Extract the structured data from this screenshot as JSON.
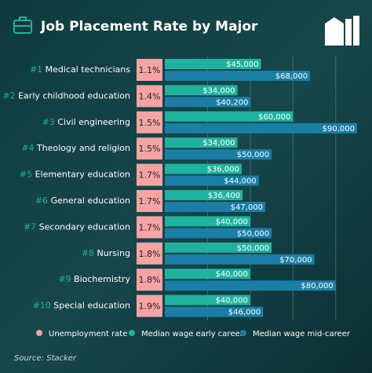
{
  "chart_data": {
    "type": "bar",
    "title": "Job Placement Rate by Major",
    "ranks": [
      "#1",
      "#2",
      "#3",
      "#4",
      "#5",
      "#6",
      "#7",
      "#8",
      "#9",
      "#10"
    ],
    "categories": [
      "Medical technicians",
      "Early childhood education",
      "Civil engineering",
      "Theology and religion",
      "Elementary education",
      "General education",
      "Secondary education",
      "Nursing",
      "Biochemistry",
      "Special education"
    ],
    "series": [
      {
        "name": "Unemployment rate",
        "color": "#f5a3a3",
        "values": [
          1.1,
          1.4,
          1.5,
          1.5,
          1.7,
          1.7,
          1.7,
          1.8,
          1.8,
          1.9
        ],
        "value_labels": [
          "1.1%",
          "1.4%",
          "1.5%",
          "1.5%",
          "1.7%",
          "1.7%",
          "1.7%",
          "1.8%",
          "1.8%",
          "1.9%"
        ]
      },
      {
        "name": "Median wage early career",
        "color": "#1fb39f",
        "values": [
          45000,
          34000,
          60000,
          34000,
          36000,
          36400,
          40000,
          50000,
          40000,
          40000
        ],
        "value_labels": [
          "$45,000",
          "$34,000",
          "$60,000",
          "$34,000",
          "$36,000",
          "$36,400",
          "$40,000",
          "$50,000",
          "$40,000",
          "$40,000"
        ]
      },
      {
        "name": "Median wage mid-career",
        "color": "#1a7ea6",
        "values": [
          68000,
          40200,
          90000,
          50000,
          44000,
          47000,
          50000,
          70000,
          80000,
          46000
        ],
        "value_labels": [
          "$68,000",
          "$40,200",
          "$90,000",
          "$50,000",
          "$44,000",
          "$47,000",
          "$50,000",
          "$70,000",
          "$80,000",
          "$46,000"
        ]
      }
    ],
    "xlim": [
      0,
      90000
    ],
    "xticks": [
      20000,
      40000,
      60000,
      80000
    ],
    "grid": true,
    "source": "Source: Stacker"
  }
}
